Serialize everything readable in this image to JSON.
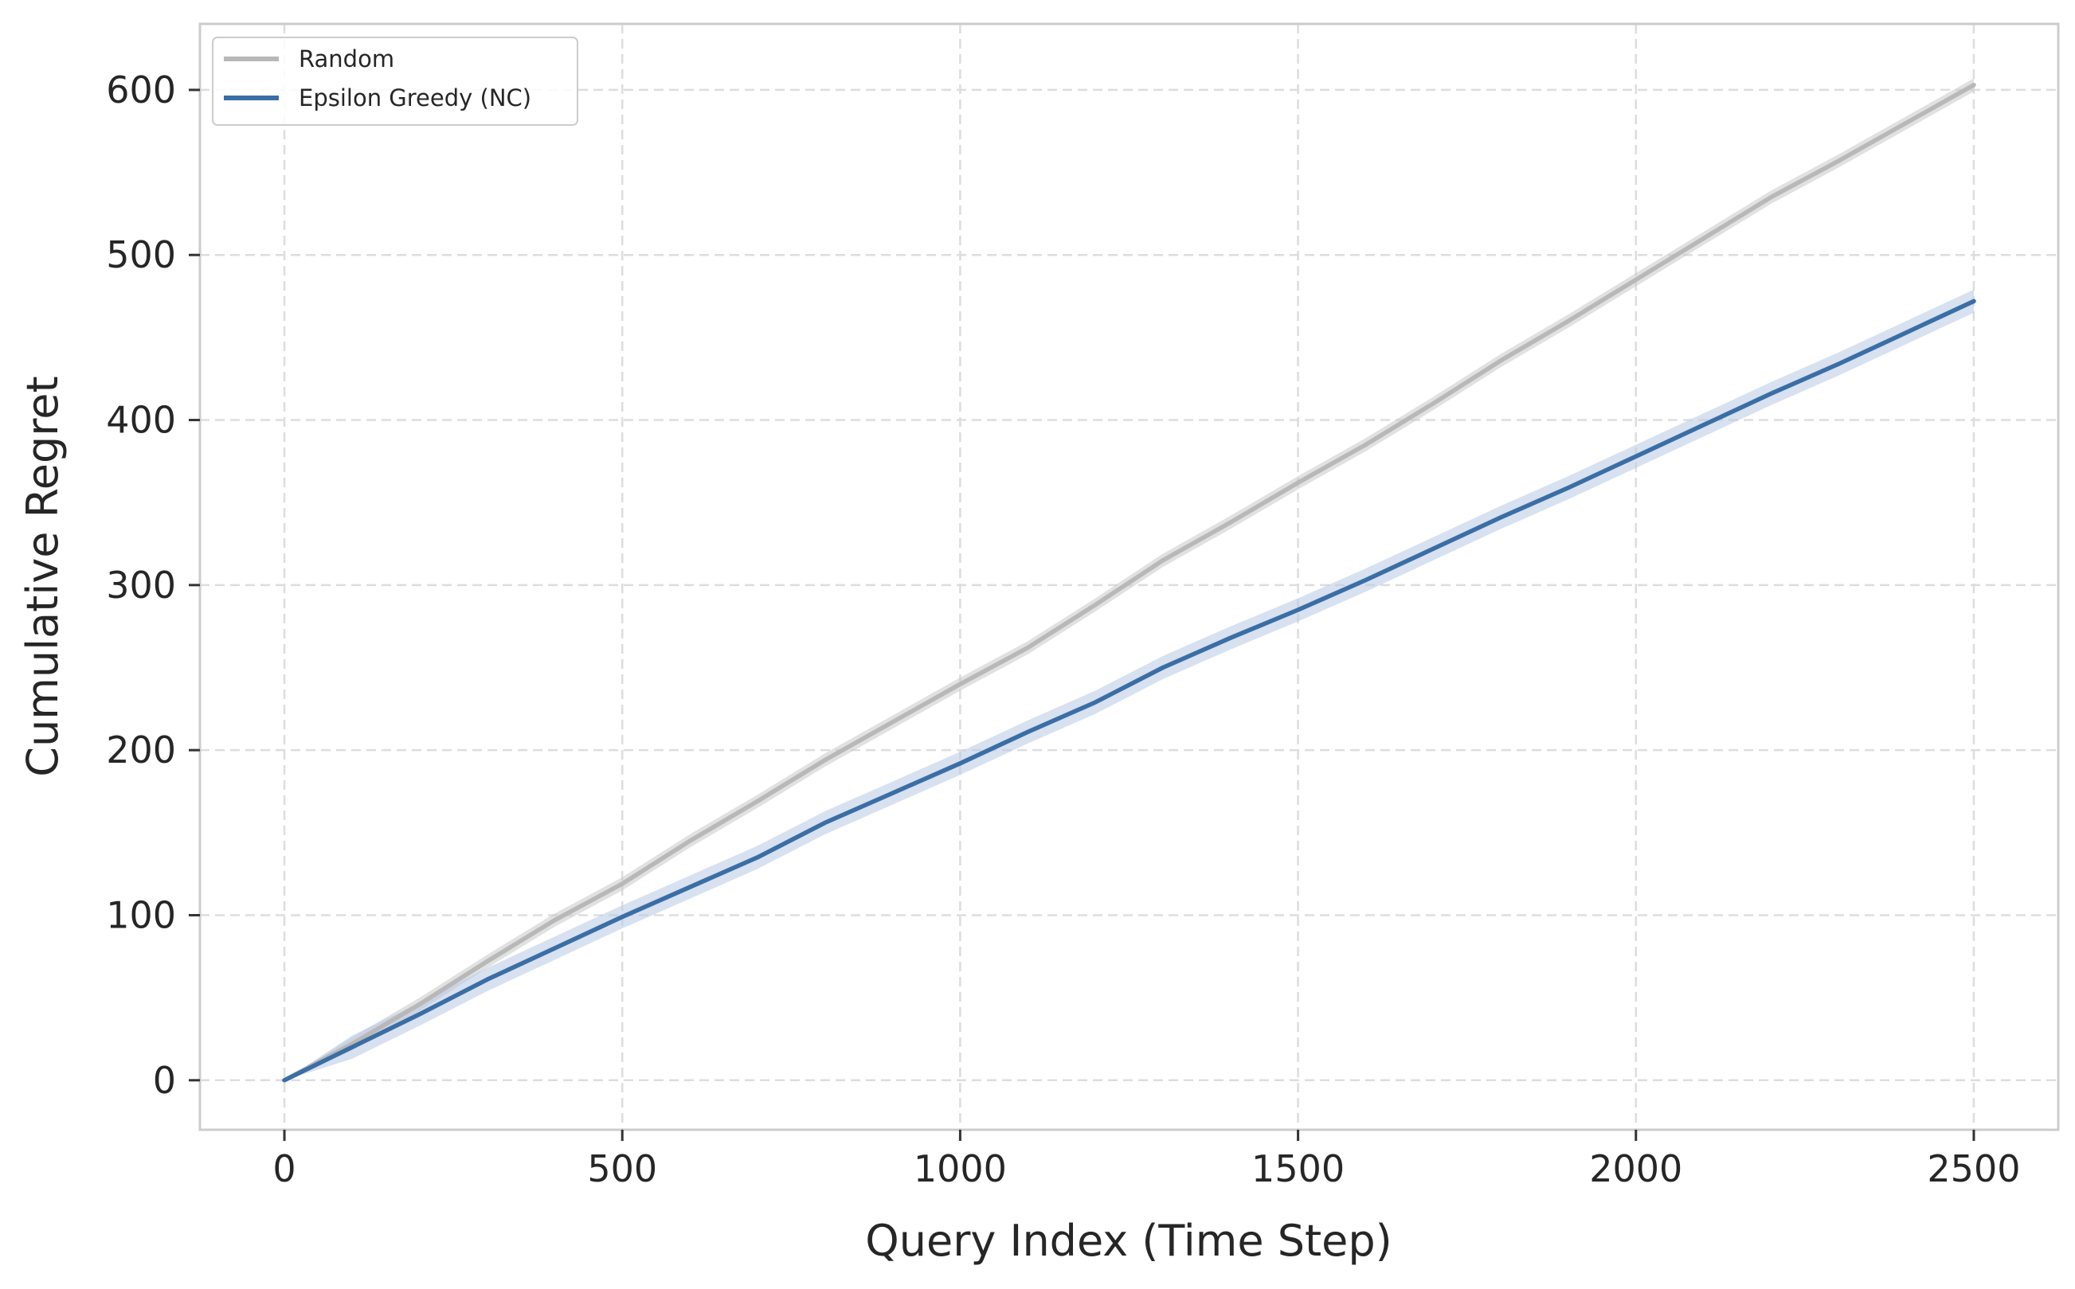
{
  "chart_data": {
    "type": "line",
    "title": "",
    "xlabel": "Query Index (Time Step)",
    "ylabel": "Cumulative Regret",
    "xlim": [
      -125,
      2625
    ],
    "ylim": [
      -30,
      640
    ],
    "xticks": [
      0,
      500,
      1000,
      1500,
      2000,
      2500
    ],
    "yticks": [
      0,
      100,
      200,
      300,
      400,
      500,
      600
    ],
    "grid": true,
    "grid_style": "dashed",
    "legend_position": "top-left",
    "series": [
      {
        "name": "Random",
        "color": "#b8b8b8",
        "band_color": "#c8c8c8",
        "x": [
          0,
          100,
          200,
          300,
          400,
          500,
          600,
          700,
          800,
          900,
          1000,
          1100,
          1200,
          1300,
          1400,
          1500,
          1600,
          1700,
          1800,
          1900,
          2000,
          2100,
          2200,
          2300,
          2400,
          2500
        ],
        "y": [
          0,
          22,
          46,
          72,
          97,
          119,
          145,
          169,
          194,
          217,
          240,
          262,
          288,
          315,
          338,
          362,
          385,
          410,
          436,
          460,
          485,
          510,
          535,
          557,
          580,
          603
        ],
        "band": 4
      },
      {
        "name": "Epsilon Greedy (NC)",
        "color": "#3a6ea5",
        "band_color": "#b6c9e4",
        "x": [
          0,
          100,
          200,
          300,
          400,
          500,
          600,
          700,
          800,
          900,
          1000,
          1100,
          1200,
          1300,
          1400,
          1500,
          1600,
          1700,
          1800,
          1900,
          2000,
          2100,
          2200,
          2300,
          2400,
          2500
        ],
        "y": [
          0,
          20,
          40,
          61,
          80,
          99,
          117,
          135,
          156,
          174,
          192,
          211,
          229,
          250,
          268,
          285,
          303,
          322,
          341,
          359,
          378,
          397,
          416,
          434,
          453,
          472
        ],
        "band": 7
      }
    ]
  }
}
